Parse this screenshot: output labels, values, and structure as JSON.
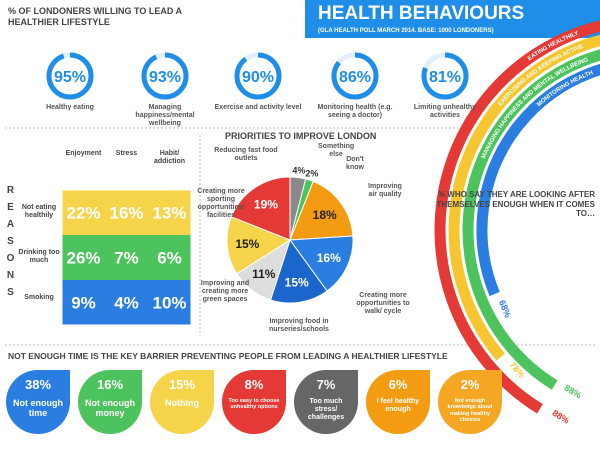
{
  "header": {
    "title": "HEALTH BEHAVIOURS",
    "subtitle": "(GLA HEALTH POLL MARCH 2014. BASE: 1000 LONDONERS)"
  },
  "chart_data": [
    {
      "type": "ring",
      "title": "% OF LONDONERS WILLING TO LEAD A HEALTHIER LIFESTYLE",
      "categories": [
        "Healthy eating",
        "Managing happiness/mental wellbeing",
        "Exercise and activity level",
        "Monitoring health (e.g. seeing a doctor)",
        "Limiting unhealthy activities"
      ],
      "values": [
        95,
        93,
        90,
        86,
        81
      ],
      "value_labels": [
        "95%",
        "93%",
        "90%",
        "86%",
        "81%"
      ],
      "color": "#1f8ee8"
    },
    {
      "type": "table",
      "title": "REASONS",
      "columns": [
        "Enjoyment",
        "Stress",
        "Habit/ addiction"
      ],
      "rows": [
        "Not eating healthily",
        "Drinking too much",
        "Smoking"
      ],
      "values": [
        [
          22,
          16,
          13
        ],
        [
          26,
          7,
          6
        ],
        [
          9,
          4,
          10
        ]
      ],
      "value_labels": [
        [
          "22%",
          "16%",
          "13%"
        ],
        [
          "26%",
          "7%",
          "6%"
        ],
        [
          "9%",
          "4%",
          "10%"
        ]
      ],
      "colors": [
        "#f6d44a",
        "#4cc35c",
        "#2a7de1"
      ]
    },
    {
      "type": "pie",
      "title": "PRIORITIES TO IMPROVE LONDON",
      "categories": [
        "Something else",
        "Don't know",
        "Improving air quality",
        "Creating more opportunities to walk/ cycle",
        "Improving food in nurseries/schools",
        "Improving and creating more green spaces",
        "Creating more sporting opportunities/ facilities",
        "Reducing fast food outlets"
      ],
      "values": [
        4,
        2,
        18,
        16,
        15,
        11,
        15,
        19
      ],
      "value_labels": [
        "4%",
        "2%",
        "18%",
        "16%",
        "15%",
        "11%",
        "15%",
        "19%"
      ],
      "colors": [
        "#8a8a8a",
        "#4cc35c",
        "#f39c12",
        "#2a7de1",
        "#1a66cc",
        "#dddddd",
        "#f6d44a",
        "#e53935"
      ]
    },
    {
      "type": "arc",
      "title": "% WHO SAY THEY ARE LOOKING AFTER THEMSELVES ENOUGH WHEN IT COMES TO…",
      "categories": [
        "EATING HEALTHILY",
        "EXERCISING AND KEEPING ACTIVE",
        "MANAGING HAPPINESS AND MENTAL WELLBEING",
        "MONITORING HEALTH"
      ],
      "values": [
        88,
        78,
        88,
        68
      ],
      "value_labels": [
        "88%",
        "78%",
        "88%",
        "68%"
      ],
      "colors": [
        "#e53935",
        "#f6c630",
        "#4cc35c",
        "#2a7de1"
      ]
    },
    {
      "type": "drop",
      "title": "NOT ENOUGH TIME IS THE KEY BARRIER PREVENTING PEOPLE FROM LEADING A HEALTHIER LIFESTYLE",
      "categories": [
        "Not enough time",
        "Not enough money",
        "Nothing",
        "Too easy to choose unhealthy options",
        "Too much stress/ challenges",
        "I feel healthy enough",
        "Not enough knowledge about making healthy choices"
      ],
      "values": [
        38,
        16,
        15,
        8,
        7,
        6,
        2
      ],
      "value_labels": [
        "38%",
        "16%",
        "15%",
        "8%",
        "7%",
        "6%",
        "2%"
      ],
      "colors": [
        "#2a7de1",
        "#4cc35c",
        "#f6d44a",
        "#e53935",
        "#666666",
        "#f39c12",
        "#f5a623"
      ]
    }
  ]
}
